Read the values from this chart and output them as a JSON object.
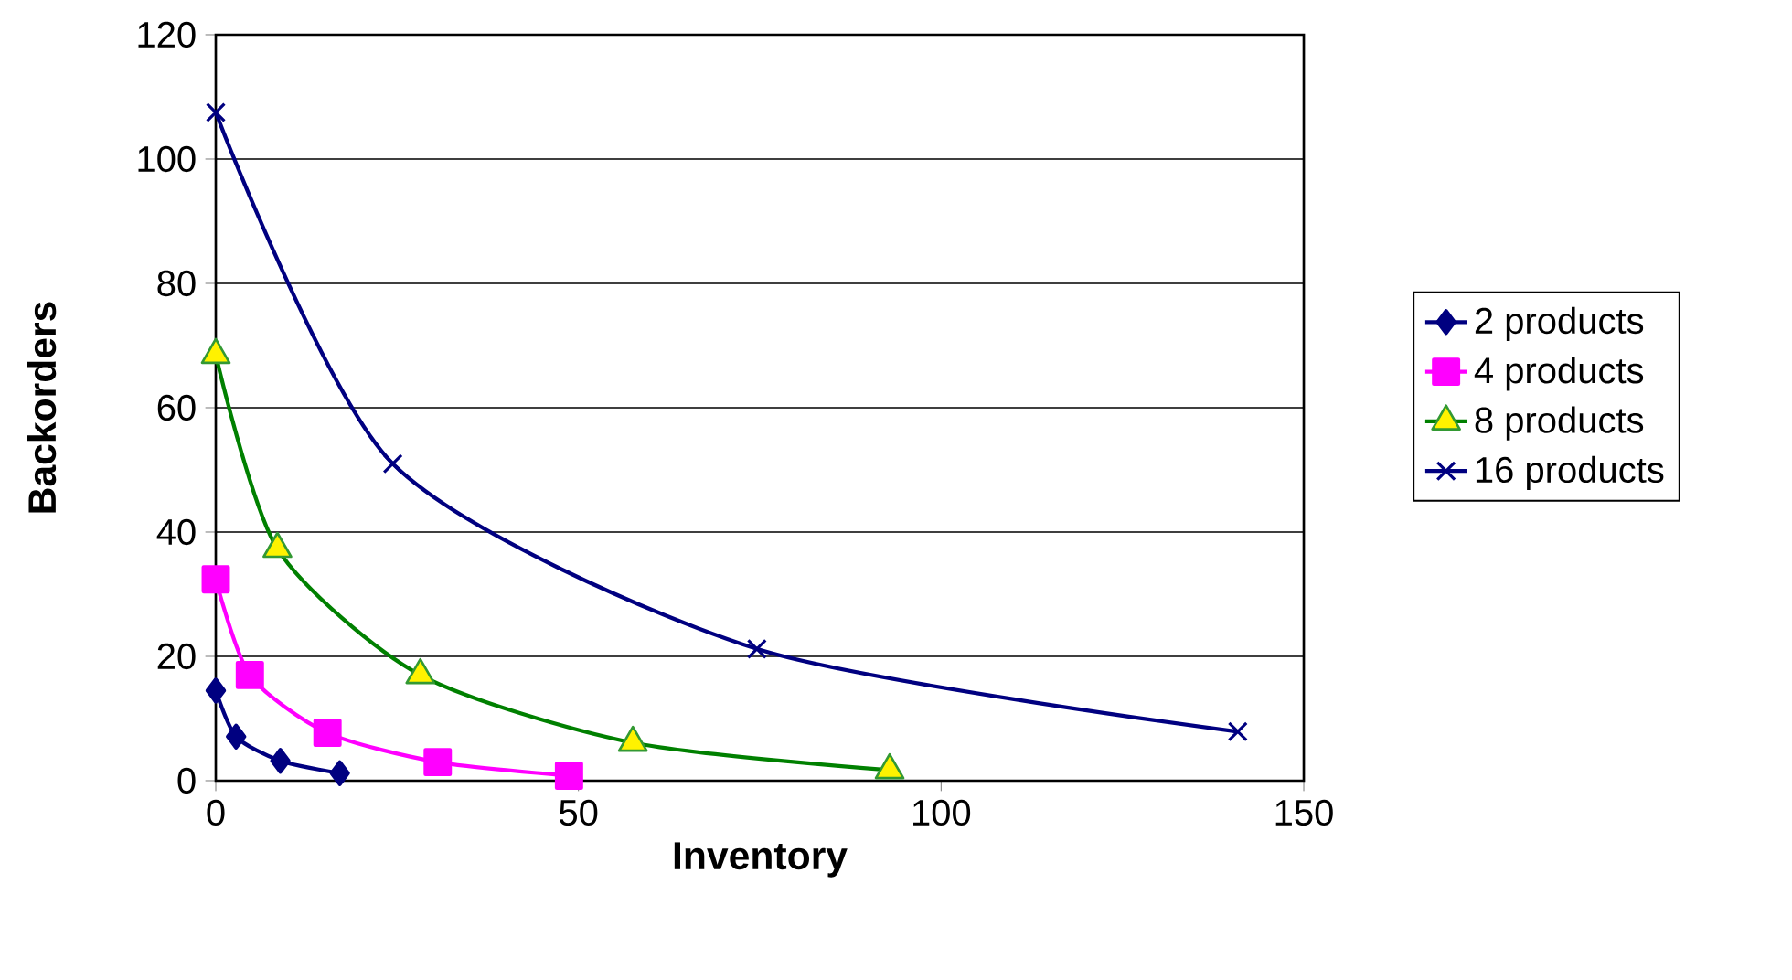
{
  "chart_data": {
    "type": "line",
    "xlabel": "Inventory",
    "ylabel": "Backorders",
    "xlim": [
      0,
      150
    ],
    "xticks": [
      0,
      50,
      100,
      150
    ],
    "ylim": [
      0,
      120
    ],
    "yticks": [
      0,
      20,
      40,
      60,
      80,
      100,
      120
    ],
    "grid": "y",
    "legend": "right",
    "series": [
      {
        "name": "2 products",
        "color": "#000080",
        "marker": "diamond",
        "x": [
          0,
          2.8,
          8.9,
          17.1
        ],
        "values": [
          14.5,
          7.1,
          3.2,
          1.2
        ]
      },
      {
        "name": "4 products",
        "color": "#ff00ff",
        "marker": "square",
        "x": [
          0,
          4.7,
          15.4,
          30.6,
          48.7
        ],
        "values": [
          32.4,
          17,
          7.7,
          3,
          0.8
        ]
      },
      {
        "name": "8 products",
        "color": "#008000",
        "marker": "triangle",
        "x": [
          0,
          8.5,
          28.2,
          57.5,
          92.9
        ],
        "values": [
          68.5,
          37.3,
          17,
          6.1,
          1.7
        ]
      },
      {
        "name": "16 products",
        "color": "#000080",
        "marker": "cross",
        "x": [
          0,
          24.4,
          74.6,
          140.9
        ],
        "values": [
          107.5,
          51,
          21.2,
          7.9
        ]
      }
    ]
  }
}
